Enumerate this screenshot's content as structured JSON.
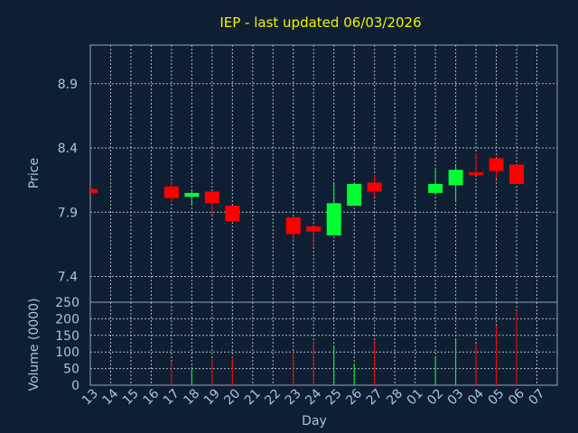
{
  "header": {
    "title": "IEP - last updated 06/03/2026"
  },
  "chart_data": {
    "type": "candlestick",
    "title": "IEP - last updated 06/03/2026",
    "xlabel": "Day",
    "ylabel": "Price",
    "volume_label": "Volume (0000)",
    "x": [
      "13",
      "14",
      "15",
      "16",
      "17",
      "18",
      "19",
      "20",
      "21",
      "22",
      "23",
      "24",
      "25",
      "26",
      "27",
      "28",
      "01",
      "02",
      "03",
      "04",
      "05",
      "06",
      "07"
    ],
    "price_ylim": [
      7.2,
      9.2
    ],
    "price_ticks": [
      "7.4",
      "7.9",
      "8.4",
      "8.9"
    ],
    "volume_ylim": [
      0,
      250
    ],
    "volume_ticks": [
      "0",
      "50",
      "100",
      "150",
      "200",
      "250"
    ],
    "grid": true,
    "up_color": "#00ff33",
    "down_color": "#ff0000",
    "candles": [
      {
        "day": "13",
        "open": 8.08,
        "close": 8.05,
        "high": 8.08,
        "low": 8.05,
        "volume": 0
      },
      {
        "day": "17",
        "open": 8.1,
        "close": 8.01,
        "high": 8.14,
        "low": 7.98,
        "volume": 70
      },
      {
        "day": "18",
        "open": 8.02,
        "close": 8.05,
        "high": 8.06,
        "low": 7.96,
        "volume": 55
      },
      {
        "day": "19",
        "open": 8.06,
        "close": 7.97,
        "high": 8.07,
        "low": 7.88,
        "volume": 80
      },
      {
        "day": "20",
        "open": 7.95,
        "close": 7.83,
        "high": 7.95,
        "low": 7.83,
        "volume": 85
      },
      {
        "day": "23",
        "open": 7.86,
        "close": 7.73,
        "high": 7.86,
        "low": 7.68,
        "volume": 100
      },
      {
        "day": "24",
        "open": 7.79,
        "close": 7.75,
        "high": 7.79,
        "low": 7.63,
        "volume": 130
      },
      {
        "day": "25",
        "open": 7.72,
        "close": 7.97,
        "high": 8.12,
        "low": 7.72,
        "volume": 120
      },
      {
        "day": "26",
        "open": 7.95,
        "close": 8.12,
        "high": 8.12,
        "low": 7.95,
        "volume": 65
      },
      {
        "day": "27",
        "open": 8.13,
        "close": 8.06,
        "high": 8.19,
        "low": 8.02,
        "volume": 135
      },
      {
        "day": "02",
        "open": 8.05,
        "close": 8.12,
        "high": 8.24,
        "low": 8.05,
        "volume": 85
      },
      {
        "day": "03",
        "open": 8.11,
        "close": 8.23,
        "high": 8.26,
        "low": 7.98,
        "volume": 140
      },
      {
        "day": "04",
        "open": 8.21,
        "close": 8.19,
        "high": 8.36,
        "low": 8.19,
        "volume": 125
      },
      {
        "day": "05",
        "open": 8.32,
        "close": 8.22,
        "high": 8.32,
        "low": 8.16,
        "volume": 180
      },
      {
        "day": "06",
        "open": 8.27,
        "close": 8.12,
        "high": 8.27,
        "low": 8.12,
        "volume": 225
      }
    ]
  }
}
